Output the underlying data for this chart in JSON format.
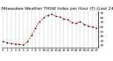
{
  "title": "Milwaukee Weather THSW Index per Hour (F) (Last 24 Hours)",
  "y_values": [
    28,
    26,
    24,
    23,
    22,
    21,
    28,
    42,
    58,
    72,
    80,
    86,
    88,
    84,
    82,
    78,
    76,
    70,
    68,
    72,
    66,
    62,
    60,
    58
  ],
  "line_color": "#cc0000",
  "marker_color": "#000000",
  "background_color": "#ffffff",
  "grid_color": "#888888",
  "ylim_min": 15,
  "ylim_max": 95,
  "y_ticks": [
    20,
    30,
    40,
    50,
    60,
    70,
    80,
    90
  ],
  "title_fontsize": 4.2,
  "tick_fontsize": 3.2,
  "figwidth": 1.6,
  "figheight": 0.87,
  "dpi": 100
}
